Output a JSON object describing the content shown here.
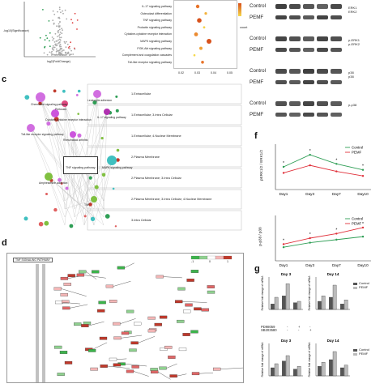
{
  "panels": {
    "c": "c",
    "d": "d",
    "f": "f",
    "g": "g"
  },
  "volcano": {
    "xlabel": "log2(FoldChange)",
    "ylabel": "-log10(Significance)"
  },
  "kegg": {
    "pathways": [
      "IL-17 signaling pathway",
      "Osteoclast differentiation",
      "TNF signaling pathway",
      "Prolactin signaling pathway",
      "Cytokine-cytokine receptor interaction",
      "MAPK signaling pathway",
      "PI3K-Akt signaling pathway",
      "Complement and coagulation cascades",
      "Toll-like receptor signaling pathway"
    ],
    "xticks": [
      "0.02",
      "0.03",
      "0.04",
      "0.05"
    ],
    "legend_count": "count"
  },
  "blots": {
    "control": "Control",
    "pemf": "PEMF",
    "proteins": [
      {
        "label1": "ERK1",
        "label2": "ERK2"
      },
      {
        "label1": "p-ERK1",
        "label2": "p-ERK2"
      },
      {
        "label1": "p38",
        "label2": "p38"
      },
      {
        "label1": "p-p38",
        "label2": ""
      }
    ]
  },
  "network": {
    "go_terms": [
      "1.Extracellular",
      "1.Extracellular; 3.Intra Cellular",
      "1.Extracellular; 4.Nuclear Membrane",
      "2.Plasma Membrane",
      "2.Plasma Membrane; 3.Intra Cellular",
      "2.Plasma Membrane; 3.Intra Cellular; 4.Nuclear Membrane",
      "3.Intra Cellular"
    ],
    "pathway_box": "TNF signaling pathway",
    "nodes": [
      "Chemokine signaling pathway",
      "Cytokine-cytokine receptor interaction",
      "Toll-like receptor signaling pathway",
      "Rheumatoid arthritis",
      "Pertussis",
      "Leukocyte adhesion",
      "IL-17 signaling pathway",
      "Amphetamine addiction",
      "MAPK signaling pathway",
      "TNF"
    ]
  },
  "kegg_map": {
    "title": "TNF SIGNALING PATHWAY",
    "scale": [
      "-1",
      "0",
      "1"
    ]
  },
  "chart_f1": {
    "ylabel": "pERK1/2 / ERK1/2",
    "categories": [
      "Day1",
      "Day3",
      "Day7",
      "Day10"
    ],
    "series": [
      {
        "name": "Control",
        "values": [
          1.5,
          2.3,
          1.7,
          1.3
        ]
      },
      {
        "name": "PEMF",
        "values": [
          1.1,
          1.6,
          1.2,
          0.9
        ]
      }
    ],
    "ylim": [
      0,
      3
    ],
    "sig": "*"
  },
  "chart_f2": {
    "ylabel": "p-p38 / p38",
    "categories": [
      "Day1",
      "Day3",
      "Day7",
      "Day10"
    ],
    "series": [
      {
        "name": "Control",
        "values": [
          0.9,
          1.2,
          1.4,
          1.6
        ]
      },
      {
        "name": "PEMF",
        "values": [
          1.1,
          1.5,
          1.8,
          2.2
        ]
      }
    ],
    "ylim": [
      0,
      3
    ],
    "sig": "*"
  },
  "chart_data": [
    {
      "type": "bar",
      "title": "Day 3",
      "ylabel": "Relative fold change of mRNA",
      "categories": [
        "1",
        "2",
        "3"
      ],
      "series": [
        {
          "name": "Control",
          "values": [
            0.2,
            0.5,
            0.25
          ]
        },
        {
          "name": "PEMF",
          "values": [
            0.45,
            0.95,
            0.3
          ]
        }
      ],
      "ylim": [
        0,
        1.2
      ]
    },
    {
      "type": "bar",
      "title": "Day 14",
      "ylabel": "Relative fold change of mRNA",
      "categories": [
        "1",
        "2",
        "3"
      ],
      "series": [
        {
          "name": "Control",
          "values": [
            0.3,
            0.45,
            0.2
          ]
        },
        {
          "name": "PEMF",
          "values": [
            0.5,
            0.9,
            0.35
          ]
        }
      ],
      "ylim": [
        0,
        1.2
      ]
    },
    {
      "type": "bar",
      "title": "Day 3",
      "ylabel": "Relative fold change of mRNA",
      "categories": [
        "1",
        "2",
        "3"
      ],
      "series": [
        {
          "name": "Control",
          "values": [
            0.3,
            0.55,
            0.25
          ]
        },
        {
          "name": "PEMF",
          "values": [
            0.45,
            0.75,
            0.35
          ]
        }
      ],
      "ylim": [
        0,
        1.2
      ]
    },
    {
      "type": "bar",
      "title": "Day 14",
      "ylabel": "Relative fold change of mRNA",
      "categories": [
        "1",
        "2",
        "3"
      ],
      "series": [
        {
          "name": "Control",
          "values": [
            0.35,
            0.6,
            0.3
          ]
        },
        {
          "name": "PEMF",
          "values": [
            0.5,
            0.9,
            0.4
          ]
        }
      ],
      "ylim": [
        0,
        1.2
      ]
    }
  ],
  "chart_g_legend": {
    "control": "Control",
    "pemf": "PEMF"
  },
  "chart_g_rows": {
    "pd": "PD98059",
    "sb": "SB203580",
    "minus": "-",
    "plus": "+"
  },
  "colors": {
    "control": "#2e9e55",
    "pemf": "#e0303a",
    "bar_dark": "#555555",
    "bar_light": "#bbbbbb"
  }
}
